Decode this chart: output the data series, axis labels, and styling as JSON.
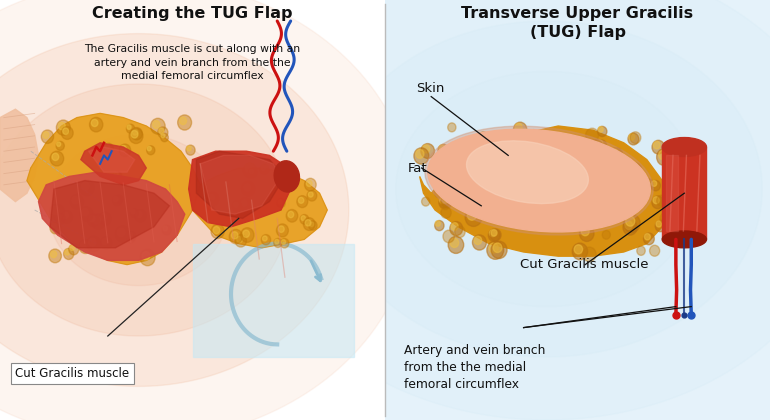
{
  "left_title": "Creating the TUG Flap",
  "left_subtitle": "The Gracilis muscle is cut along with an\nartery and vein branch from the the\nmedial femoral circumflex",
  "left_label": "Cut Gracilis muscle",
  "right_title": "Transverse Upper Gracilis\n(TUG) Flap",
  "right_label_skin": "Skin",
  "right_label_fat": "Fat",
  "right_label_muscle": "Cut Gracilis muscle",
  "right_label_vessels": "Artery and vein branch\nfrom the the medial\nfemoral circumflex",
  "bg_left": "#ffffff",
  "bg_right": "#dff0fa",
  "fat_color": "#e8a020",
  "fat_dark": "#c88010",
  "fat_light": "#f0c040",
  "skin_color": "#f2b090",
  "skin_light": "#f8d0b8",
  "muscle_color": "#cc3322",
  "muscle_mid": "#b02818",
  "muscle_dark": "#8a1e10",
  "muscle_light": "#e05040",
  "artery_color": "#cc1111",
  "vein_color": "#2255bb",
  "text_color": "#111111",
  "ann_color": "#111111",
  "lw_ann": 0.9,
  "divider_color": "#bbbbbb"
}
